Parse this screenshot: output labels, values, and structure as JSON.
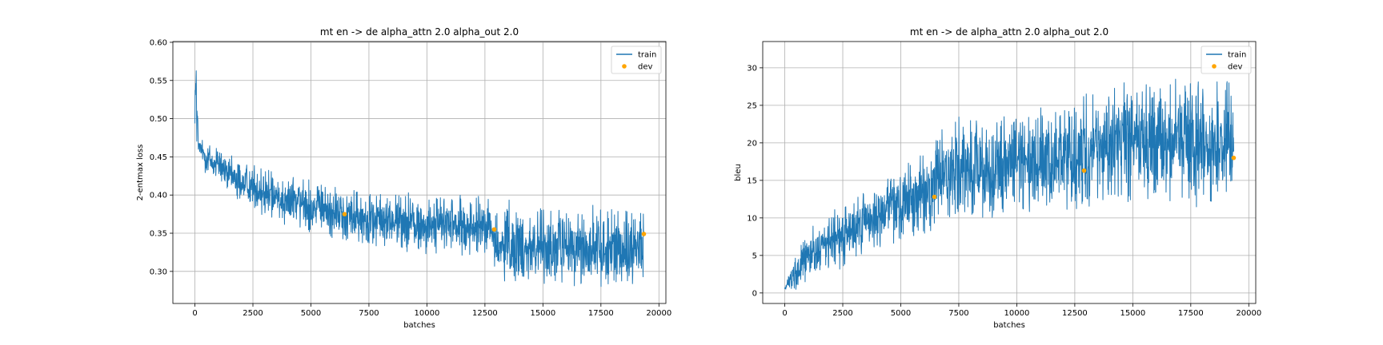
{
  "chart_data": [
    {
      "type": "line",
      "title": "mt en -> de alpha_attn 2.0 alpha_out 2.0",
      "xlabel": "batches",
      "ylabel": "2-entmax loss",
      "xlim": [
        -950,
        20300
      ],
      "ylim": [
        0.258,
        0.601
      ],
      "xticks": [
        0,
        2500,
        5000,
        7500,
        10000,
        12500,
        15000,
        17500,
        20000
      ],
      "yticks": [
        0.3,
        0.35,
        0.4,
        0.45,
        0.5,
        0.55,
        0.6
      ],
      "grid": true,
      "legend_position": "top-right",
      "colors": {
        "train": "#1f77b4",
        "dev": "#ffa500"
      },
      "series": [
        {
          "name": "train",
          "kind": "line",
          "x_range": [
            0,
            19350
          ],
          "envelope": [
            {
              "x": 0,
              "low": 0.49,
              "high": 0.585
            },
            {
              "x": 60,
              "low": 0.478,
              "high": 0.585
            },
            {
              "x": 150,
              "low": 0.452,
              "high": 0.475
            },
            {
              "x": 500,
              "low": 0.428,
              "high": 0.468
            },
            {
              "x": 1000,
              "low": 0.415,
              "high": 0.455
            },
            {
              "x": 2000,
              "low": 0.395,
              "high": 0.44
            },
            {
              "x": 3000,
              "low": 0.378,
              "high": 0.43
            },
            {
              "x": 4000,
              "low": 0.365,
              "high": 0.422
            },
            {
              "x": 5000,
              "low": 0.356,
              "high": 0.415
            },
            {
              "x": 6500,
              "low": 0.345,
              "high": 0.405
            },
            {
              "x": 7500,
              "low": 0.338,
              "high": 0.398
            },
            {
              "x": 10000,
              "low": 0.33,
              "high": 0.392
            },
            {
              "x": 12800,
              "low": 0.325,
              "high": 0.39
            },
            {
              "x": 12900,
              "low": 0.29,
              "high": 0.378
            },
            {
              "x": 15000,
              "low": 0.29,
              "high": 0.375
            },
            {
              "x": 17500,
              "low": 0.288,
              "high": 0.373
            },
            {
              "x": 19350,
              "low": 0.29,
              "high": 0.372
            }
          ]
        },
        {
          "name": "dev",
          "kind": "scatter",
          "x": [
            6450,
            12900,
            19350
          ],
          "y": [
            0.375,
            0.355,
            0.349
          ]
        }
      ]
    },
    {
      "type": "line",
      "title": "mt en -> de alpha_attn 2.0 alpha_out 2.0",
      "xlabel": "batches",
      "ylabel": "bleu",
      "xlim": [
        -950,
        20300
      ],
      "ylim": [
        -1.4,
        33.5
      ],
      "xticks": [
        0,
        2500,
        5000,
        7500,
        10000,
        12500,
        15000,
        17500,
        20000
      ],
      "yticks": [
        0,
        5,
        10,
        15,
        20,
        25,
        30
      ],
      "grid": true,
      "legend_position": "top-right",
      "colors": {
        "train": "#1f77b4",
        "dev": "#ffa500"
      },
      "series": [
        {
          "name": "train",
          "kind": "line",
          "x_range": [
            0,
            19350
          ],
          "envelope": [
            {
              "x": 0,
              "low": 0.3,
              "high": 0.8
            },
            {
              "x": 500,
              "low": 1.0,
              "high": 5.0
            },
            {
              "x": 1000,
              "low": 2.0,
              "high": 7.5
            },
            {
              "x": 2500,
              "low": 4.0,
              "high": 11.0
            },
            {
              "x": 4000,
              "low": 6.5,
              "high": 14.5
            },
            {
              "x": 5000,
              "low": 7.5,
              "high": 16.5
            },
            {
              "x": 6400,
              "low": 9.0,
              "high": 18.5
            },
            {
              "x": 6500,
              "low": 10.5,
              "high": 21.0
            },
            {
              "x": 10000,
              "low": 11.5,
              "high": 22.5
            },
            {
              "x": 12800,
              "low": 12.0,
              "high": 24.0
            },
            {
              "x": 12900,
              "low": 13.0,
              "high": 26.0
            },
            {
              "x": 15000,
              "low": 13.5,
              "high": 26.5
            },
            {
              "x": 17500,
              "low": 13.5,
              "high": 27.0
            },
            {
              "x": 19350,
              "low": 13.0,
              "high": 27.5
            }
          ]
        },
        {
          "name": "dev",
          "kind": "scatter",
          "x": [
            6450,
            12900,
            19350
          ],
          "y": [
            12.8,
            16.3,
            18.0
          ]
        }
      ]
    }
  ]
}
